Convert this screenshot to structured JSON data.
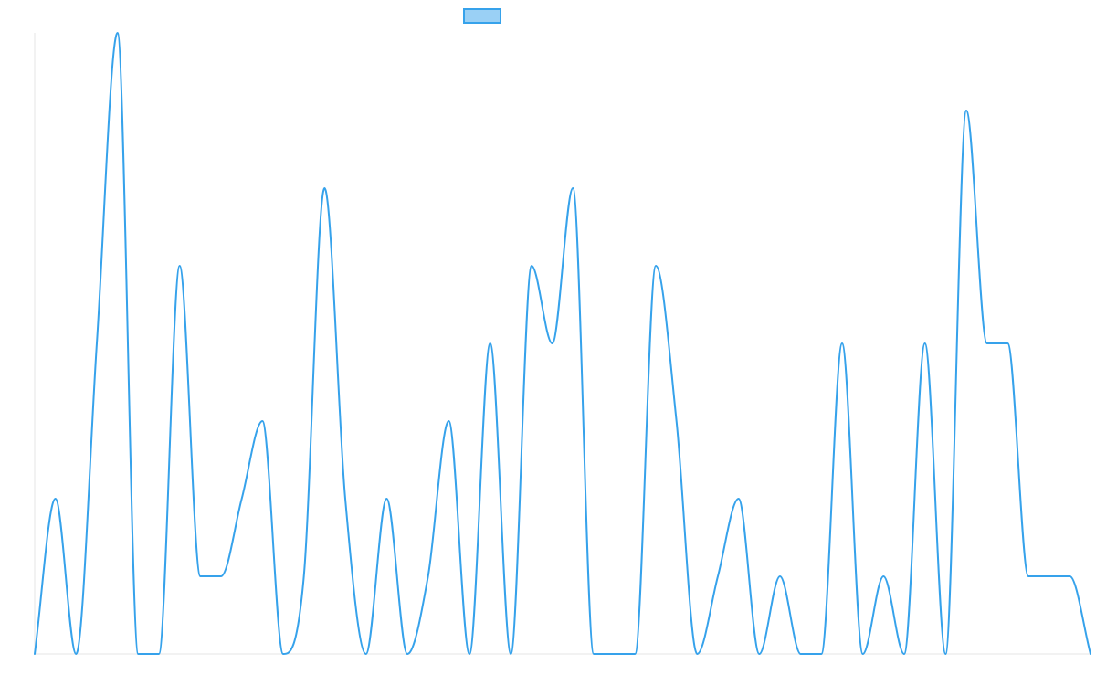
{
  "chart_data": {
    "type": "line",
    "title": "",
    "xlabel": "",
    "ylabel": "",
    "grid": false,
    "legend": {
      "position": "top-center",
      "entries": [
        {
          "label": "",
          "color": "#36a2eb",
          "fill": "#9ad0f5"
        }
      ]
    },
    "ylim": [
      0,
      8
    ],
    "x": [
      0,
      1,
      2,
      3,
      4,
      5,
      6,
      7,
      8,
      9,
      10,
      11,
      12,
      13,
      14,
      15,
      16,
      17,
      18,
      19,
      20,
      21,
      22,
      23,
      24,
      25,
      26,
      27,
      28,
      29,
      30,
      31,
      32,
      33,
      34,
      35,
      36,
      37,
      38,
      39,
      40,
      41,
      42,
      43,
      44,
      45,
      46,
      47,
      48,
      49,
      50,
      51
    ],
    "series": [
      {
        "name": "",
        "color": "#36a2eb",
        "values": [
          0,
          2,
          0,
          4,
          8,
          0,
          0,
          5,
          1,
          1,
          2,
          3,
          0,
          1,
          6,
          2,
          0,
          2,
          0,
          1,
          3,
          0,
          4,
          0,
          5,
          4,
          6,
          0,
          0,
          0,
          5,
          3,
          0,
          1,
          2,
          0,
          1,
          0,
          0,
          4,
          0,
          1,
          0,
          4,
          0,
          7,
          4,
          4,
          1,
          1,
          1,
          0
        ]
      }
    ]
  }
}
